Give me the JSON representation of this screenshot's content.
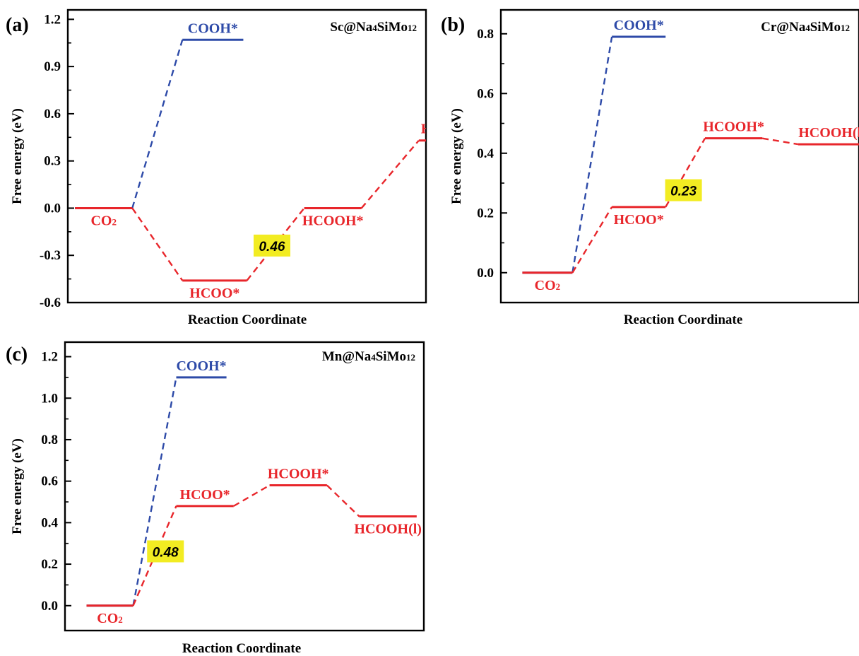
{
  "colors": {
    "red": "#e8262b",
    "blue": "#2d4aa8",
    "highlight": "#f2ec22",
    "axis": "#000000"
  },
  "chart_data": [
    {
      "type": "line",
      "panel_label": "(a)",
      "title": "Sc@Na4SiMo12",
      "title_parts": [
        "Sc@Na",
        "4",
        "SiMo",
        "12"
      ],
      "xlabel": "Reaction Coordinate",
      "ylabel": "Free energy (eV)",
      "ylim": [
        -0.6,
        1.26
      ],
      "yticks": [
        -0.6,
        -0.3,
        0.0,
        0.3,
        0.6,
        0.9,
        1.2
      ],
      "tick_labels": [
        "-0.6",
        "-0.3",
        "0.0",
        "0.3",
        "0.6",
        "0.9",
        "1.2"
      ],
      "xlim": [
        0,
        100
      ],
      "grid": false,
      "series": [
        {
          "color": "red",
          "levels": [
            {
              "name": "CO2",
              "label_parts": [
                "CO",
                "2"
              ],
              "x": [
                2,
                18
              ],
              "y": 0.0,
              "label_pos": "below"
            },
            {
              "name": "HCOO*",
              "label_parts": [
                "HCOO*"
              ],
              "x": [
                32,
                50
              ],
              "y": -0.46,
              "label_pos": "below"
            },
            {
              "name": "HCOOH*",
              "label_parts": [
                "HCOOH*"
              ],
              "x": [
                66,
                82
              ],
              "y": 0.0,
              "label_pos": "below"
            },
            {
              "name": "HCOOH(l)",
              "label_parts": [
                "HCOOH(l)"
              ],
              "x": [
                98,
                118
              ],
              "y": 0.43,
              "label_pos": "above"
            }
          ]
        },
        {
          "color": "blue",
          "levels": [
            {
              "name": "CO2",
              "label_parts": [],
              "x": [
                2,
                18
              ],
              "y": 0.0,
              "label_pos": "none"
            },
            {
              "name": "COOH*",
              "label_parts": [
                "COOH*"
              ],
              "x": [
                32,
                49
              ],
              "y": 1.07,
              "label_pos": "above"
            }
          ]
        }
      ],
      "annotation": {
        "text": "0.46",
        "x": 57,
        "y": -0.24
      }
    },
    {
      "type": "line",
      "panel_label": "(b)",
      "title": "Cr@Na4SiMo12",
      "title_parts": [
        "Cr@Na",
        "4",
        "SiMo",
        "12"
      ],
      "xlabel": "Reaction Coordinate",
      "ylabel": "Free energy (eV)",
      "ylim": [
        -0.1,
        0.88
      ],
      "yticks": [
        0.0,
        0.2,
        0.4,
        0.6,
        0.8
      ],
      "tick_labels": [
        "0.0",
        "0.2",
        "0.4",
        "0.6",
        "0.8"
      ],
      "xlim": [
        0,
        100
      ],
      "grid": false,
      "series": [
        {
          "color": "red",
          "levels": [
            {
              "name": "CO2",
              "label_parts": [
                "CO",
                "2"
              ],
              "x": [
                6,
                20
              ],
              "y": 0.0,
              "label_pos": "below"
            },
            {
              "name": "HCOO*",
              "label_parts": [
                "HCOO*"
              ],
              "x": [
                31,
                46
              ],
              "y": 0.22,
              "label_pos": "below"
            },
            {
              "name": "HCOOH*",
              "label_parts": [
                "HCOOH*"
              ],
              "x": [
                57,
                73
              ],
              "y": 0.45,
              "label_pos": "above"
            },
            {
              "name": "HCOOH(l)",
              "label_parts": [
                "HCOOH(l)"
              ],
              "x": [
                83,
                102
              ],
              "y": 0.43,
              "label_pos": "above"
            }
          ]
        },
        {
          "color": "blue",
          "levels": [
            {
              "name": "CO2",
              "label_parts": [],
              "x": [
                6,
                20
              ],
              "y": 0.0,
              "label_pos": "none"
            },
            {
              "name": "COOH*",
              "label_parts": [
                "COOH*"
              ],
              "x": [
                31,
                46
              ],
              "y": 0.79,
              "label_pos": "above"
            }
          ]
        }
      ],
      "annotation": {
        "text": "0.23",
        "x": 51,
        "y": 0.275
      }
    },
    {
      "type": "line",
      "panel_label": "(c)",
      "title": "Mn@Na4SiMo12",
      "title_parts": [
        "Mn@Na",
        "4",
        "SiMo",
        "12"
      ],
      "xlabel": "Reaction Coordinate",
      "ylabel": "Free energy (eV)",
      "ylim": [
        -0.12,
        1.27
      ],
      "yticks": [
        0.0,
        0.2,
        0.4,
        0.6,
        0.8,
        1.0,
        1.2
      ],
      "tick_labels": [
        "0.0",
        "0.2",
        "0.4",
        "0.6",
        "0.8",
        "1.0",
        "1.2"
      ],
      "xlim": [
        0,
        100
      ],
      "grid": false,
      "series": [
        {
          "color": "red",
          "levels": [
            {
              "name": "CO2",
              "label_parts": [
                "CO",
                "2"
              ],
              "x": [
                6,
                19
              ],
              "y": 0.0,
              "label_pos": "below"
            },
            {
              "name": "HCOO*",
              "label_parts": [
                "HCOO*"
              ],
              "x": [
                31,
                47
              ],
              "y": 0.48,
              "label_pos": "above"
            },
            {
              "name": "HCOOH*",
              "label_parts": [
                "HCOOH*"
              ],
              "x": [
                57,
                73
              ],
              "y": 0.58,
              "label_pos": "above"
            },
            {
              "name": "HCOOH(l)",
              "label_parts": [
                "HCOOH(l)"
              ],
              "x": [
                82,
                98
              ],
              "y": 0.43,
              "label_pos": "below"
            }
          ]
        },
        {
          "color": "blue",
          "levels": [
            {
              "name": "CO2",
              "label_parts": [],
              "x": [
                6,
                19
              ],
              "y": 0.0,
              "label_pos": "none"
            },
            {
              "name": "COOH*",
              "label_parts": [
                "COOH*"
              ],
              "x": [
                31,
                45
              ],
              "y": 1.1,
              "label_pos": "above"
            }
          ]
        }
      ],
      "annotation": {
        "text": "0.48",
        "x": 28,
        "y": 0.26
      }
    }
  ]
}
